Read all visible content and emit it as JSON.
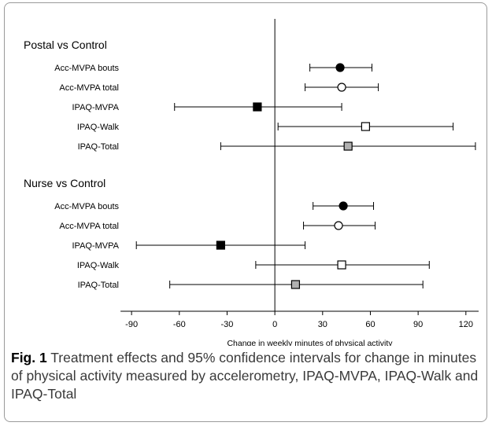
{
  "chart_data": {
    "type": "forest",
    "xlabel": "Change in weekly minutes of physical activity",
    "xlim": [
      -96,
      128
    ],
    "xticks": [
      -90,
      -60,
      -30,
      0,
      30,
      60,
      90,
      120
    ],
    "reference_line": 0,
    "groups": [
      {
        "title": "Postal vs Control",
        "rows": [
          {
            "label": "Acc-MVPA bouts",
            "estimate": 41,
            "lower": 22,
            "upper": 61,
            "marker": "circle",
            "fill": "#000000"
          },
          {
            "label": "Acc-MVPA total",
            "estimate": 42,
            "lower": 19,
            "upper": 65,
            "marker": "circle",
            "fill": "#ffffff"
          },
          {
            "label": "IPAQ-MVPA",
            "estimate": -11,
            "lower": -63,
            "upper": 42,
            "marker": "square",
            "fill": "#000000"
          },
          {
            "label": "IPAQ-Walk",
            "estimate": 57,
            "lower": 2,
            "upper": 112,
            "marker": "square",
            "fill": "#ffffff"
          },
          {
            "label": "IPAQ-Total",
            "estimate": 46,
            "lower": -34,
            "upper": 126,
            "marker": "square",
            "fill": "#b0b0b0"
          }
        ]
      },
      {
        "title": "Nurse vs Control",
        "rows": [
          {
            "label": "Acc-MVPA bouts",
            "estimate": 43,
            "lower": 24,
            "upper": 62,
            "marker": "circle",
            "fill": "#000000"
          },
          {
            "label": "Acc-MVPA total",
            "estimate": 40,
            "lower": 18,
            "upper": 63,
            "marker": "circle",
            "fill": "#ffffff"
          },
          {
            "label": "IPAQ-MVPA",
            "estimate": -34,
            "lower": -87,
            "upper": 19,
            "marker": "square",
            "fill": "#000000"
          },
          {
            "label": "IPAQ-Walk",
            "estimate": 42,
            "lower": -12,
            "upper": 97,
            "marker": "square",
            "fill": "#ffffff"
          },
          {
            "label": "IPAQ-Total",
            "estimate": 13,
            "lower": -66,
            "upper": 93,
            "marker": "square",
            "fill": "#b0b0b0"
          }
        ]
      }
    ]
  },
  "caption": {
    "label": "Fig. 1",
    "text": " Treatment effects and 95% confidence intervals for change in minutes of physical activity measured by accelerometry, IPAQ-MVPA, IPAQ-Walk and IPAQ-Total"
  }
}
